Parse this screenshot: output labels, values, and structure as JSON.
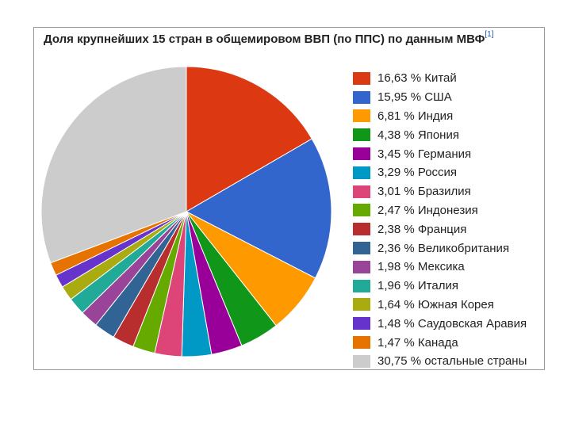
{
  "chart_data": {
    "type": "pie",
    "title": "Доля крупнейших 15 стран в общемировом ВВП (по ППС) по данным МВФ",
    "title_ref": "[1]",
    "legend_position": "right",
    "start_angle": "top, clockwise",
    "slices": [
      {
        "value": 16.63,
        "label": "16,63 % Китай",
        "color": "#dc3912"
      },
      {
        "value": 15.95,
        "label": "15,95 % США",
        "color": "#3366cc"
      },
      {
        "value": 6.81,
        "label": "6,81 % Индия",
        "color": "#ff9900"
      },
      {
        "value": 4.38,
        "label": "4,38 % Япония",
        "color": "#109618"
      },
      {
        "value": 3.45,
        "label": "3,45 % Германия",
        "color": "#990099"
      },
      {
        "value": 3.29,
        "label": "3,29 % Россия",
        "color": "#0099c6"
      },
      {
        "value": 3.01,
        "label": "3,01 % Бразилия",
        "color": "#dd4477"
      },
      {
        "value": 2.47,
        "label": "2,47 % Индонезия",
        "color": "#66aa00"
      },
      {
        "value": 2.38,
        "label": "2,38 % Франция",
        "color": "#b82e2e"
      },
      {
        "value": 2.36,
        "label": "2,36 % Великобритания",
        "color": "#316395"
      },
      {
        "value": 1.98,
        "label": "1,98 % Мексика",
        "color": "#994499"
      },
      {
        "value": 1.96,
        "label": "1,96 % Италия",
        "color": "#22aa99"
      },
      {
        "value": 1.64,
        "label": "1,64 % Южная Корея",
        "color": "#aaaa11"
      },
      {
        "value": 1.48,
        "label": "1,48 % Саудовская Аравия",
        "color": "#6633cc"
      },
      {
        "value": 1.47,
        "label": "1,47 % Канада",
        "color": "#e67300"
      },
      {
        "value": 30.75,
        "label": "30,75 % остальные страны",
        "color": "#cccccc"
      }
    ]
  }
}
